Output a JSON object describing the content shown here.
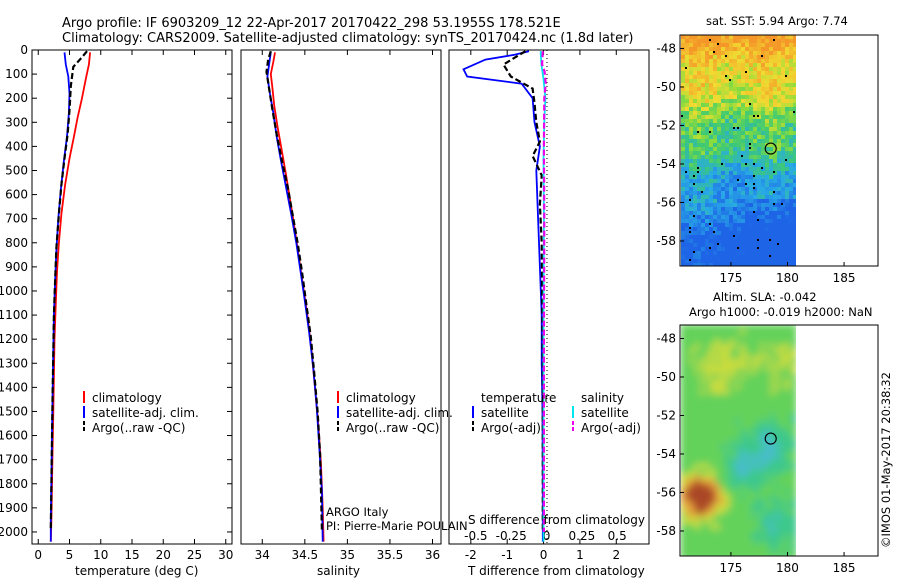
{
  "header": {
    "line1": "Argo profile: IF 6903209_12 22-Apr-2017 20170422_298 53.1955S 178.521E",
    "line2": "Climatology: CARS2009. Satellite-adjusted climatology: synTS_20170424.nc (1.8d later)"
  },
  "credit": "©IMOS 01-May-2017 20:38:32",
  "colors": {
    "climatology": "#ff0000",
    "satellite": "#0000ff",
    "argo": "#000000",
    "salinity_satellite": "#00e5ee",
    "salinity_argo": "#ee00ee"
  },
  "chart_data": [
    {
      "id": "temperature",
      "type": "line",
      "xlabel": "temperature (deg C)",
      "ylabel": "",
      "xlim": [
        -1,
        31
      ],
      "ylim": [
        2050,
        0
      ],
      "xticks": [
        0,
        5,
        10,
        15,
        20,
        25,
        30
      ],
      "yticks": [
        0,
        100,
        200,
        300,
        400,
        500,
        600,
        700,
        800,
        900,
        1000,
        1100,
        1200,
        1300,
        1400,
        1500,
        1600,
        1700,
        1800,
        1900,
        2000
      ],
      "legend": [
        "climatology",
        "satellite-adj. clim.",
        "Argo(..raw -QC)"
      ],
      "legend_placement": "lower-right",
      "series": [
        {
          "name": "climatology",
          "style": "solid",
          "x": [
            8.3,
            8.1,
            7.6,
            7.0,
            6.3,
            5.7,
            5.0,
            4.3,
            3.7,
            3.3,
            3.0,
            2.8,
            2.6,
            2.5,
            2.4,
            2.3,
            2.2,
            2.1,
            2.0
          ],
          "y": [
            10,
            60,
            120,
            200,
            280,
            360,
            450,
            560,
            680,
            800,
            920,
            1050,
            1200,
            1350,
            1500,
            1650,
            1800,
            1950,
            2040
          ]
        },
        {
          "name": "satellite-adj. clim.",
          "style": "solid",
          "x": [
            4.2,
            4.4,
            4.8,
            5.0,
            4.9,
            4.6,
            4.1,
            3.6,
            3.2,
            2.9,
            2.7,
            2.5,
            2.4,
            2.3,
            2.2,
            2.1,
            2.0,
            2.0
          ],
          "y": [
            10,
            60,
            110,
            180,
            260,
            360,
            460,
            580,
            700,
            830,
            960,
            1100,
            1250,
            1420,
            1600,
            1780,
            1950,
            2040
          ]
        },
        {
          "name": "Argo(..raw -QC)",
          "style": "dashed",
          "x": [
            7.8,
            7.0,
            5.6,
            5.2,
            5.0,
            4.7,
            4.2,
            3.7,
            3.3,
            2.9,
            2.7,
            2.5,
            2.4,
            2.3,
            2.2,
            2.1,
            2.0
          ],
          "y": [
            5,
            30,
            70,
            150,
            250,
            350,
            450,
            560,
            680,
            820,
            960,
            1100,
            1260,
            1430,
            1610,
            1800,
            1990
          ]
        }
      ]
    },
    {
      "id": "salinity",
      "type": "line",
      "xlabel": "salinity",
      "ylabel": "",
      "xlim": [
        33.75,
        36.1
      ],
      "ylim": [
        2050,
        0
      ],
      "xticks": [
        34,
        34.5,
        35,
        35.5,
        36
      ],
      "xticklabels": [
        "34",
        "34.5",
        "35",
        "35.5",
        "36"
      ],
      "legend": [
        "climatology",
        "satellite-adj. clim.",
        "Argo(..raw -QC)"
      ],
      "legend_placement": "lower-right",
      "annotation": [
        "ARGO Italy",
        "PI: Pierre-Marie POULAIN"
      ],
      "series": [
        {
          "name": "climatology",
          "style": "solid",
          "x": [
            34.15,
            34.13,
            34.1,
            34.12,
            34.14,
            34.18,
            34.23,
            34.28,
            34.33,
            34.38,
            34.43,
            34.48,
            34.53,
            34.58,
            34.62,
            34.66,
            34.69,
            34.71,
            34.72
          ],
          "y": [
            10,
            50,
            100,
            160,
            230,
            320,
            420,
            520,
            630,
            740,
            860,
            980,
            1100,
            1250,
            1400,
            1560,
            1720,
            1900,
            2040
          ]
        },
        {
          "name": "satellite-adj. clim.",
          "style": "solid",
          "x": [
            34.1,
            34.08,
            34.06,
            34.09,
            34.13,
            34.17,
            34.22,
            34.28,
            34.34,
            34.4,
            34.45,
            34.5,
            34.55,
            34.6,
            34.64,
            34.67,
            34.7,
            34.71
          ],
          "y": [
            10,
            60,
            110,
            180,
            260,
            360,
            460,
            570,
            680,
            800,
            920,
            1040,
            1170,
            1320,
            1480,
            1650,
            1830,
            2040
          ]
        },
        {
          "name": "Argo(..raw -QC)",
          "style": "dashed",
          "x": [
            34.1,
            34.07,
            34.05,
            34.08,
            34.12,
            34.17,
            34.23,
            34.3,
            34.36,
            34.42,
            34.47,
            34.52,
            34.57,
            34.61,
            34.65,
            34.68,
            34.7
          ],
          "y": [
            5,
            40,
            90,
            160,
            250,
            350,
            460,
            570,
            690,
            810,
            930,
            1060,
            1190,
            1340,
            1500,
            1680,
            1990
          ]
        }
      ]
    },
    {
      "id": "difference",
      "type": "line",
      "xlabel": "T difference from climatology",
      "xlabel_top": "S difference from climatology",
      "ylabel": "",
      "xlim": [
        -2.6,
        2.9
      ],
      "ylim": [
        2050,
        0
      ],
      "xticks": [
        -2,
        -1,
        0,
        1,
        2
      ],
      "top_xticks": [
        -0.5,
        -0.25,
        0,
        0.25,
        0.5
      ],
      "top_xticklabels": [
        "-0.5",
        "-0.25",
        "0",
        "0.25",
        "0.5"
      ],
      "legend_temperature_title": "temperature",
      "legend_salinity_title": "salinity",
      "legend": [
        "satellite",
        "Argo(-adj)",
        "satellite",
        "Argo(-adj)"
      ],
      "legend_placement": "lower-center",
      "series": [
        {
          "name": "temperature satellite",
          "style": "solid",
          "color": "#0000ff",
          "x": [
            -0.4,
            -0.8,
            -1.6,
            -2.2,
            -2.1,
            -0.6,
            -0.3,
            -0.25,
            -0.1,
            -0.2,
            -0.15,
            -0.1,
            -0.05,
            -0.05,
            -0.03,
            -0.02,
            -0.02
          ],
          "y": [
            5,
            20,
            40,
            80,
            110,
            140,
            200,
            300,
            400,
            500,
            700,
            900,
            1100,
            1300,
            1500,
            1800,
            2040
          ]
        },
        {
          "name": "temperature Argo(-adj)",
          "style": "dashed",
          "color": "#000000",
          "x": [
            -0.5,
            -1.1,
            -0.9,
            -0.3,
            -0.25,
            -0.2,
            -0.1,
            -0.3,
            -0.05,
            -0.1,
            -0.05,
            -0.04,
            -0.02,
            -0.02,
            -0.02
          ],
          "y": [
            5,
            60,
            110,
            160,
            220,
            300,
            380,
            440,
            520,
            640,
            800,
            1000,
            1300,
            1600,
            1990
          ]
        },
        {
          "name": "salinity satellite",
          "style": "solid",
          "color": "#00e5ee",
          "x": [
            -0.08,
            -0.06,
            0.0,
            0.05,
            0.02,
            0.0,
            0.01,
            0.0,
            0.0
          ],
          "y": [
            5,
            60,
            120,
            200,
            300,
            450,
            700,
            1100,
            2040
          ]
        },
        {
          "name": "salinity Argo(-adj)",
          "style": "dashed",
          "color": "#ee00ee",
          "x": [
            -0.02,
            -0.04,
            0.03,
            0.06,
            0.02,
            0.01,
            0.02,
            0.01,
            0.01
          ],
          "y": [
            5,
            60,
            90,
            140,
            200,
            400,
            700,
            1200,
            2000
          ]
        }
      ]
    },
    {
      "id": "sst_map",
      "type": "heatmap",
      "title": "sat. SST: 5.94 Argo: 7.74",
      "xlim": [
        170.5,
        188
      ],
      "ylim": [
        -59.3,
        -47.3
      ],
      "xticks": [
        175,
        180,
        185
      ],
      "yticks": [
        -48,
        -50,
        -52,
        -54,
        -56,
        -58
      ],
      "data_extent_lon": [
        170.5,
        180
      ],
      "argo_position": {
        "lon": 178.52,
        "lat": -53.2
      }
    },
    {
      "id": "sla_map",
      "type": "heatmap",
      "title_line1": "Altim. SLA: -0.042",
      "title_line2": "Argo h1000: -0.019 h2000: NaN",
      "xlim": [
        170.5,
        188
      ],
      "ylim": [
        -59.3,
        -47.3
      ],
      "xticks": [
        175,
        180,
        185
      ],
      "yticks": [
        -48,
        -50,
        -52,
        -54,
        -56,
        -58
      ],
      "data_extent_lon": [
        170.5,
        180
      ],
      "argo_position": {
        "lon": 178.52,
        "lat": -53.2
      }
    }
  ]
}
